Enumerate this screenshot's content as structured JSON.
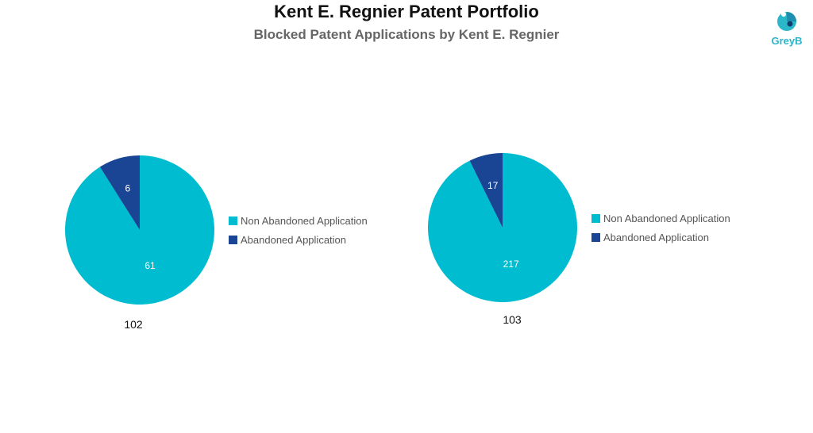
{
  "header": {
    "title": "Kent E. Regnier Patent Portfolio",
    "subtitle": "Blocked Patent Applications by Kent E. Regnier"
  },
  "logo": {
    "text": "GreyB",
    "icon": "greyb-logo-icon"
  },
  "colors": {
    "non_abandoned": "#00BCD0",
    "abandoned": "#1A4594"
  },
  "chart_data": [
    {
      "type": "pie",
      "title": "",
      "caption": "102",
      "categories": [
        "Non Abandoned Application",
        "Abandoned Application"
      ],
      "values": [
        61,
        6
      ],
      "legend_position": "right"
    },
    {
      "type": "pie",
      "title": "",
      "caption": "103",
      "categories": [
        "Non Abandoned Application",
        "Abandoned Application"
      ],
      "values": [
        217,
        17
      ],
      "legend_position": "right"
    }
  ]
}
